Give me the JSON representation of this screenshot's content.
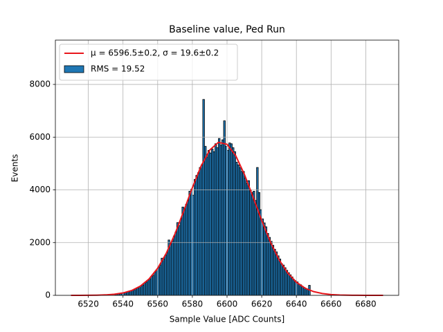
{
  "chart_data": {
    "type": "histogram",
    "title": "Baseline value, Ped Run",
    "xlabel": "Sample Value [ADC Counts]",
    "ylabel": "Events",
    "xlim": [
      6501,
      6699
    ],
    "ylim": [
      0,
      9680
    ],
    "xticks": [
      6520,
      6540,
      6560,
      6580,
      6600,
      6620,
      6640,
      6660,
      6680
    ],
    "yticks": [
      0,
      2000,
      4000,
      6000,
      8000
    ],
    "grid": true,
    "legend": "upper left",
    "series": [
      {
        "type": "line",
        "name": "μ = 6596.5±0.2, σ = 19.6±0.2",
        "color": "#e8141a",
        "x": [
          6510,
          6515,
          6520,
          6525,
          6530,
          6535,
          6540,
          6545,
          6550,
          6555,
          6560,
          6565,
          6570,
          6575,
          6580,
          6585,
          6590,
          6595,
          6600,
          6605,
          6610,
          6615,
          6620,
          6625,
          6630,
          6635,
          6640,
          6645,
          6650,
          6655,
          6660,
          6665,
          6670,
          6675,
          6680,
          6685,
          6690
        ],
        "values": [
          0.3,
          1,
          3,
          7.5,
          18,
          42,
          91,
          184,
          349,
          619,
          1028,
          1601,
          2334,
          3190,
          4084,
          4900,
          5509,
          5803,
          5728,
          5298,
          4591,
          3728,
          2837,
          2023,
          1350,
          846,
          496,
          272,
          140,
          68,
          31,
          13,
          5,
          2,
          0.7,
          0.2,
          0.1
        ]
      },
      {
        "type": "histogram",
        "name": "RMS = 19.52",
        "color": "#1f77b4",
        "edgecolor": "#000000",
        "bins": [
          6535,
          6536,
          6537,
          6538,
          6539,
          6540,
          6541,
          6542,
          6543,
          6544,
          6545,
          6546,
          6547,
          6548,
          6549,
          6550,
          6551,
          6552,
          6553,
          6554,
          6555,
          6556,
          6557,
          6558,
          6559,
          6560,
          6561,
          6562,
          6563,
          6564,
          6565,
          6566,
          6567,
          6568,
          6569,
          6570,
          6571,
          6572,
          6573,
          6574,
          6575,
          6576,
          6577,
          6578,
          6579,
          6580,
          6581,
          6582,
          6583,
          6584,
          6585,
          6586,
          6587,
          6588,
          6589,
          6590,
          6591,
          6592,
          6593,
          6594,
          6595,
          6596,
          6597,
          6598,
          6599,
          6600,
          6601,
          6602,
          6603,
          6604,
          6605,
          6606,
          6607,
          6608,
          6609,
          6610,
          6611,
          6612,
          6613,
          6614,
          6615,
          6616,
          6617,
          6618,
          6619,
          6620,
          6621,
          6622,
          6623,
          6624,
          6625,
          6626,
          6627,
          6628,
          6629,
          6630,
          6631,
          6632,
          6633,
          6634,
          6635,
          6636,
          6637,
          6638,
          6639,
          6640,
          6641,
          6642,
          6643,
          6644,
          6645,
          6646,
          6647,
          6648
        ],
        "values": [
          45,
          48,
          62,
          68,
          85,
          95,
          105,
          135,
          148,
          170,
          190,
          210,
          260,
          280,
          330,
          360,
          390,
          470,
          500,
          580,
          610,
          720,
          760,
          880,
          930,
          1060,
          1150,
          1410,
          1380,
          1520,
          1620,
          2100,
          1950,
          2060,
          2250,
          2400,
          2760,
          2650,
          2900,
          3350,
          3300,
          3450,
          3600,
          3950,
          4020,
          3800,
          4400,
          4550,
          4650,
          4850,
          4950,
          7430,
          5650,
          5250,
          5500,
          5400,
          5550,
          5450,
          5750,
          5600,
          5950,
          5700,
          5900,
          6620,
          5650,
          5500,
          5780,
          5750,
          5600,
          5450,
          5050,
          4950,
          4850,
          4700,
          4700,
          4450,
          4250,
          4350,
          4000,
          3900,
          3950,
          3600,
          4850,
          3900,
          3250,
          2900,
          2750,
          2600,
          2350,
          2200,
          2050,
          1900,
          1750,
          1650,
          1500,
          1380,
          1200,
          1150,
          1050,
          950,
          860,
          780,
          700,
          600,
          560,
          510,
          430,
          400,
          340,
          300,
          260,
          230,
          380
        ]
      }
    ]
  }
}
